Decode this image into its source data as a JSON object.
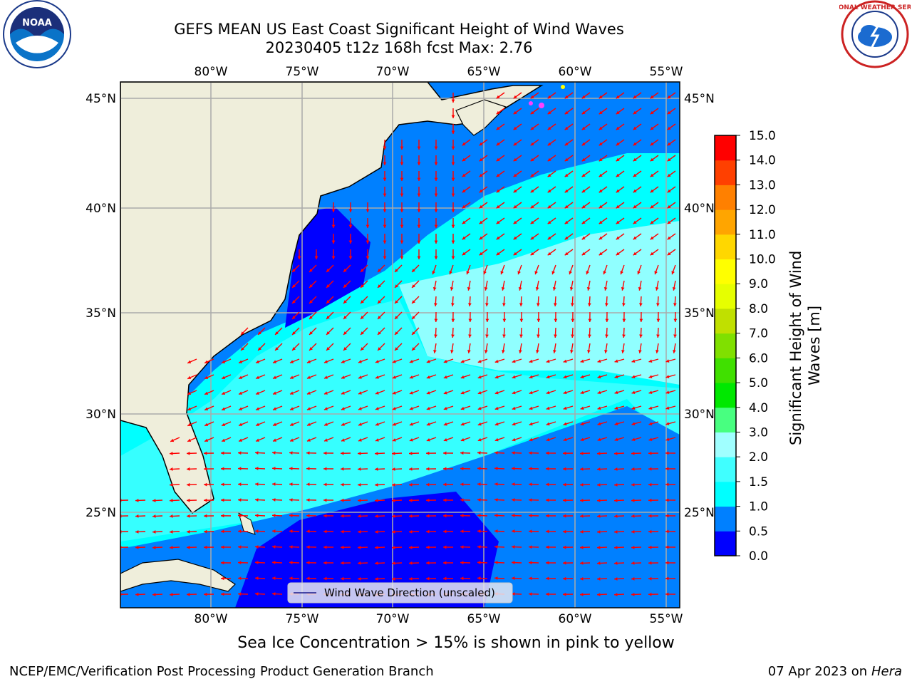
{
  "header": {
    "title_line1": "GEFS MEAN US East Coast Significant Height of Wind Waves",
    "title_line2": "20230405 t12z 168h fcst   Max: 2.76"
  },
  "logos": {
    "left": {
      "icon": "noaa-logo",
      "text": "NOAA"
    },
    "right": {
      "icon": "nws-logo",
      "text": "NATIONAL WEATHER SERVICE"
    }
  },
  "map": {
    "lon_labels": [
      "80°W",
      "75°W",
      "70°W",
      "65°W",
      "60°W",
      "55°W"
    ],
    "lat_labels": [
      "45°N",
      "40°N",
      "35°N",
      "30°N",
      "25°N"
    ],
    "land_color": "#efeedb",
    "legend_label": "Wind Wave Direction (unscaled)",
    "arrow_color": "#ff0000"
  },
  "colorbar": {
    "title": "Significant Height of Wind Waves [m]",
    "title_line1": "Significant Height of Wind",
    "title_line2": "Waves [m]",
    "ticks": [
      "0.0",
      "0.5",
      "1.0",
      "1.5",
      "2.0",
      "3.0",
      "4.0",
      "5.0",
      "6.0",
      "7.0",
      "8.0",
      "9.0",
      "10.0",
      "11.0",
      "12.0",
      "13.0",
      "14.0",
      "15.0"
    ],
    "colors": [
      "#0000ff",
      "#0080ff",
      "#00ffff",
      "#40ffff",
      "#a0ffff",
      "#48ff80",
      "#00e800",
      "#40e000",
      "#80e000",
      "#c0e000",
      "#e6ff00",
      "#ffff00",
      "#ffd700",
      "#ffa500",
      "#ff8000",
      "#ff4000",
      "#ff0000"
    ]
  },
  "footer": {
    "note": "Sea Ice Concentration > 15% is shown in pink to yellow",
    "credit": "NCEP/EMC/Verification Post Processing Product Generation Branch",
    "date": "07 Apr 2023 on ",
    "host": "Hera"
  }
}
